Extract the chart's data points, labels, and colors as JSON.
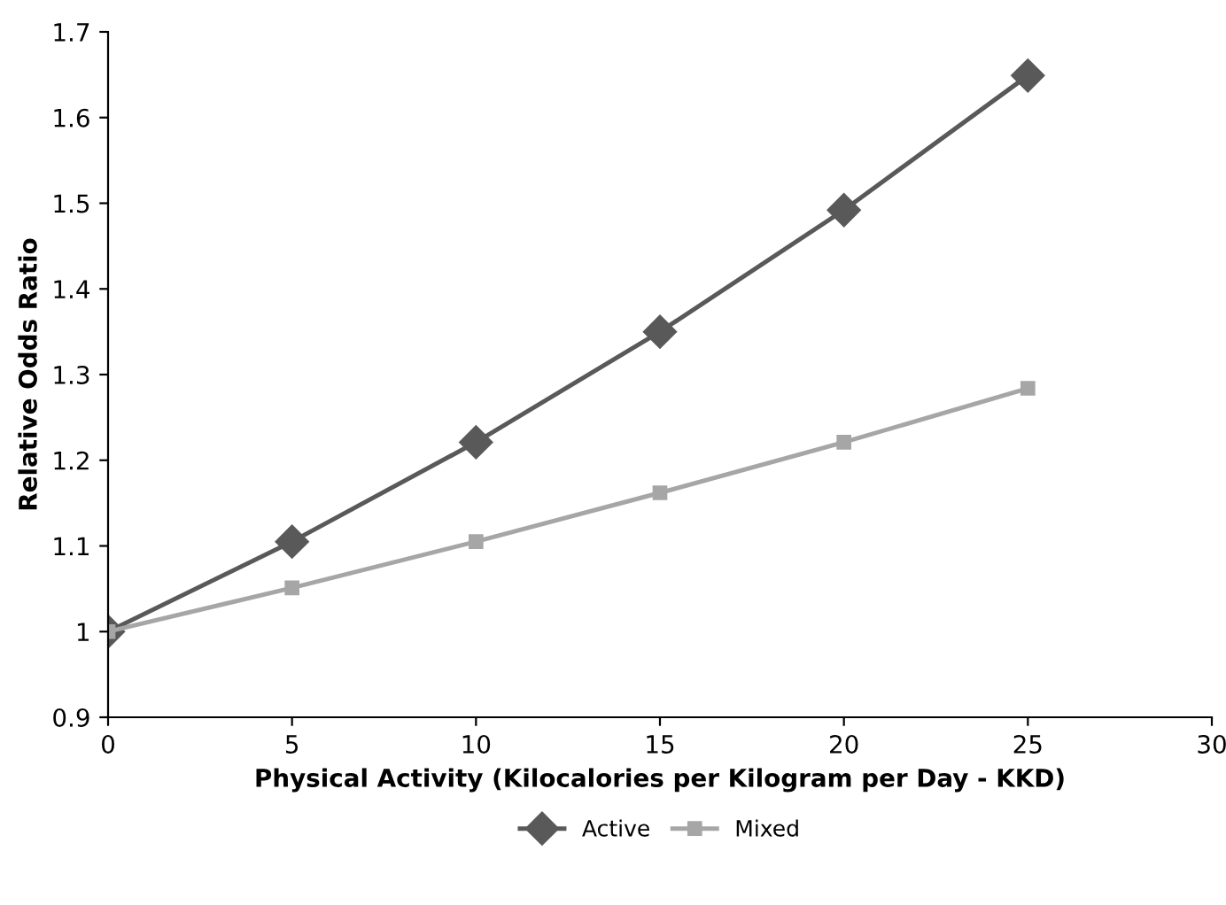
{
  "chart_data": {
    "type": "line",
    "xlabel": "Physical Activity (Kilocalories per Kilogram per Day - KKD)",
    "ylabel": "Relative Odds Ratio",
    "x": [
      0,
      5,
      10,
      15,
      20,
      25
    ],
    "series": [
      {
        "name": "Active",
        "color": "#595959",
        "values": [
          1,
          1.105,
          1.221,
          1.35,
          1.492,
          1.649
        ],
        "marker": "diamond"
      },
      {
        "name": "Mixed",
        "color": "#a6a6a6",
        "values": [
          1,
          1.051,
          1.105,
          1.162,
          1.221,
          1.284
        ],
        "marker": "square"
      }
    ],
    "xlim": [
      0,
      30
    ],
    "xticks": [
      0,
      5,
      10,
      15,
      20,
      25,
      30
    ],
    "ylim": [
      0.9,
      1.7
    ],
    "yticks": [
      0.9,
      1,
      1.1,
      1.2,
      1.3,
      1.4,
      1.5,
      1.6,
      1.7
    ],
    "grid": false,
    "legend": "bottom",
    "line_style": "solid"
  }
}
